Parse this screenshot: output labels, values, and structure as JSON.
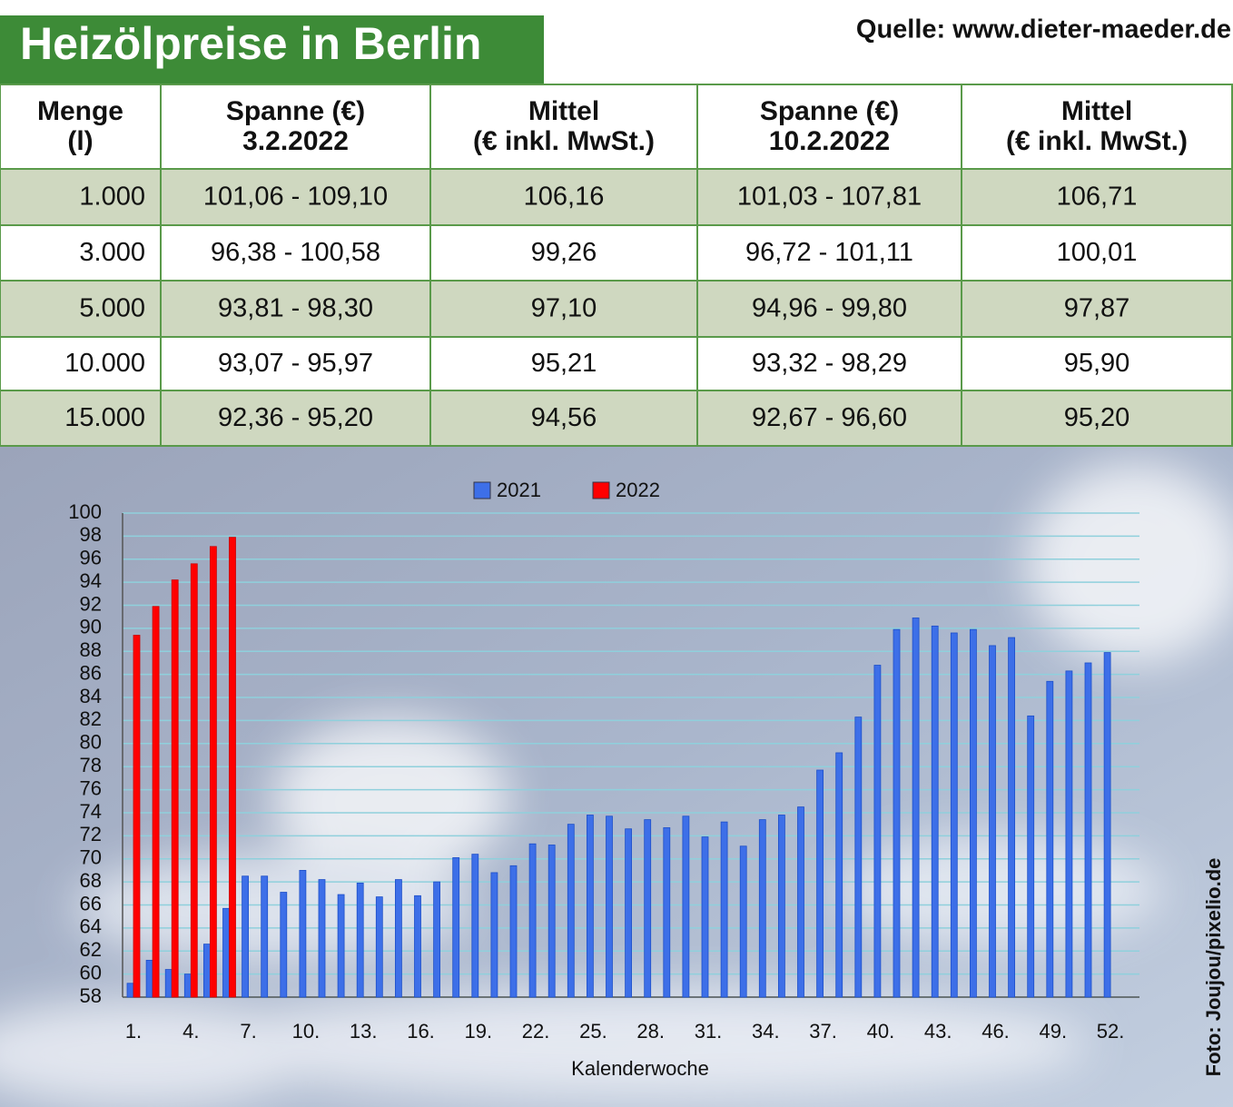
{
  "title": "Heizölpreise in Berlin",
  "source": "Quelle: www.dieter-maeder.de",
  "photo_credit": "Foto: Joujou/pixelio.de",
  "table": {
    "headers": [
      [
        "Menge",
        "(l)"
      ],
      [
        "Spanne (€)",
        "3.2.2022"
      ],
      [
        "Mittel",
        "(€ inkl. MwSt.)"
      ],
      [
        "Spanne (€)",
        "10.2.2022"
      ],
      [
        "Mittel",
        "(€ inkl. MwSt.)"
      ]
    ],
    "rows": [
      [
        "1.000",
        "101,06 - 109,10",
        "106,16",
        "101,03 - 107,81",
        "106,71"
      ],
      [
        "3.000",
        "96,38 - 100,58",
        "99,26",
        "96,72 - 101,11",
        "100,01"
      ],
      [
        "5.000",
        "93,81 - 98,30",
        "97,10",
        "94,96 - 99,80",
        "97,87"
      ],
      [
        "10.000",
        "93,07 - 95,97",
        "95,21",
        "93,32 - 98,29",
        "95,90"
      ],
      [
        "15.000",
        "92,36 - 95,20",
        "94,56",
        "92,67 - 96,60",
        "95,20"
      ]
    ]
  },
  "chart_data": {
    "type": "bar",
    "x_label": "Kalenderwoche",
    "categories": [
      "1.",
      null,
      null,
      "4.",
      null,
      null,
      "7.",
      null,
      null,
      "10.",
      null,
      null,
      "13.",
      null,
      null,
      "16.",
      null,
      null,
      "19.",
      null,
      null,
      "22.",
      null,
      null,
      "25.",
      null,
      null,
      "28.",
      null,
      null,
      "31.",
      null,
      null,
      "34.",
      null,
      null,
      "37.",
      null,
      null,
      "40.",
      null,
      null,
      "43.",
      null,
      null,
      "46.",
      null,
      null,
      "49.",
      null,
      null,
      "52."
    ],
    "series": [
      {
        "name": "2021",
        "color": "#3d6fe8",
        "values": [
          59.2,
          61.2,
          60.4,
          60.0,
          62.6,
          65.7,
          68.5,
          68.5,
          67.1,
          69.0,
          68.2,
          66.9,
          67.9,
          66.7,
          68.2,
          66.8,
          68.0,
          70.1,
          70.4,
          68.8,
          69.4,
          71.3,
          71.2,
          73.0,
          73.8,
          73.7,
          72.6,
          73.4,
          72.7,
          73.7,
          71.9,
          73.2,
          71.1,
          73.4,
          73.8,
          74.5,
          77.7,
          79.2,
          82.3,
          86.8,
          89.9,
          90.9,
          90.2,
          89.6,
          89.9,
          88.5,
          89.2,
          82.4,
          85.4,
          86.3,
          87.0,
          87.9
        ]
      },
      {
        "name": "2022",
        "color": "#ff0000",
        "values": [
          89.4,
          91.9,
          94.2,
          95.6,
          97.1,
          97.9,
          null,
          null,
          null,
          null,
          null,
          null,
          null,
          null,
          null,
          null,
          null,
          null,
          null,
          null,
          null,
          null,
          null,
          null,
          null,
          null,
          null,
          null,
          null,
          null,
          null,
          null,
          null,
          null,
          null,
          null,
          null,
          null,
          null,
          null,
          null,
          null,
          null,
          null,
          null,
          null,
          null,
          null,
          null,
          null,
          null,
          null
        ]
      }
    ],
    "ylim": [
      58,
      100
    ],
    "yticks": [
      58,
      60,
      62,
      64,
      66,
      68,
      70,
      72,
      74,
      76,
      78,
      80,
      82,
      84,
      86,
      88,
      90,
      92,
      94,
      96,
      98,
      100
    ],
    "grid": true,
    "legend": "top"
  }
}
